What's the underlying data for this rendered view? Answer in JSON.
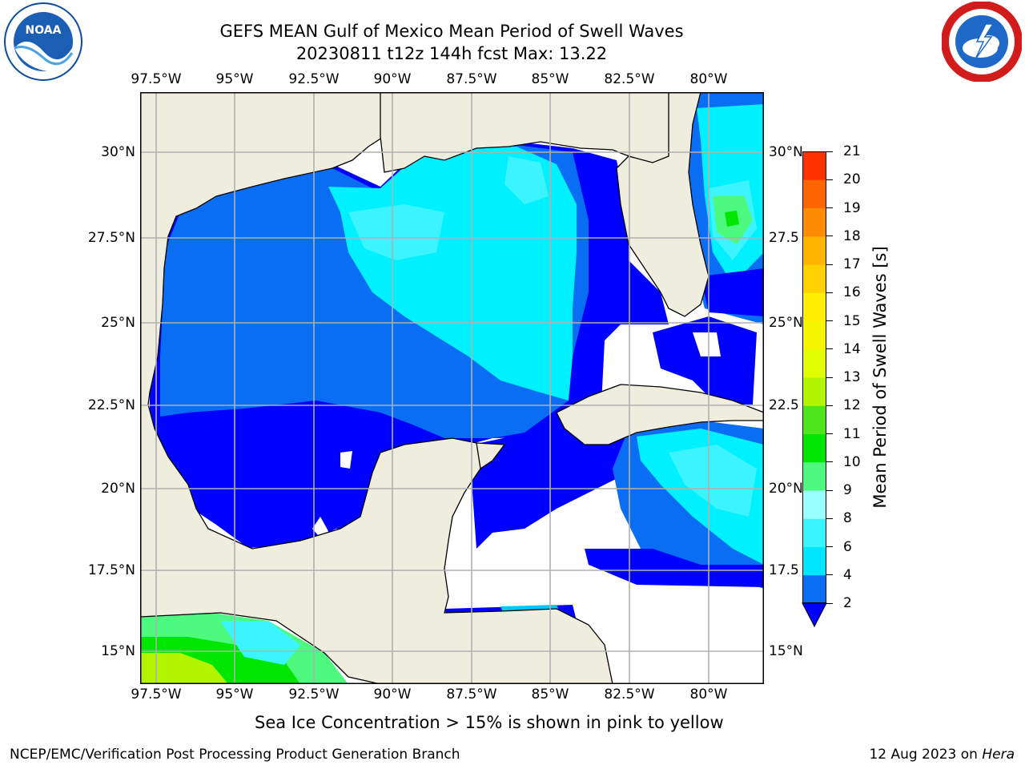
{
  "header": {
    "title_line1": "GEFS MEAN Gulf of Mexico Mean Period of Swell Waves",
    "title_line2": "20230811 t12z 144h fcst   Max: 13.22"
  },
  "logos": {
    "left_text": "NOAA",
    "left_ring_text": "NATIONAL OCEANIC AND ATMOSPHERIC ADMINISTRATION · U.S. DEPARTMENT OF COMMERCE",
    "right_ring_text": "NATIONAL WEATHER SERVICE"
  },
  "map": {
    "lon_labels": [
      "97.5°W",
      "95°W",
      "92.5°W",
      "90°W",
      "87.5°W",
      "85°W",
      "82.5°W",
      "80°W"
    ],
    "lat_labels_left": [
      "30°N",
      "27.5°N",
      "25°N",
      "22.5°N",
      "20°N",
      "17.5°N",
      "15°N"
    ],
    "lat_labels_right": [
      "30°N",
      "27.5",
      "25°N",
      "22.5",
      "20°N",
      "17.5",
      "15°N"
    ],
    "colors": {
      "land": "#efedde",
      "grid": "#b0b0b0",
      "coast": "#000000"
    }
  },
  "colorbar": {
    "title": "Mean Period of Swell Waves [s]",
    "ticks": [
      "2",
      "4",
      "6",
      "8",
      "9",
      "10",
      "11",
      "12",
      "13",
      "14",
      "15",
      "16",
      "17",
      "18",
      "19",
      "20",
      "21"
    ],
    "colors": [
      "#0a6ef5",
      "#00e6ff",
      "#39f5ff",
      "#99ffff",
      "#4dfa7f",
      "#00e600",
      "#4de61a",
      "#b3f500",
      "#e1ff00",
      "#f5f500",
      "#ffee00",
      "#ffd200",
      "#ffb400",
      "#ff8c00",
      "#ff6600",
      "#ff3300"
    ],
    "under_color": "#0000ff"
  },
  "footer": {
    "sea_ice_note": "Sea Ice Concentration > 15% is shown in pink to yellow",
    "credit": "NCEP/EMC/Verification Post Processing Product Generation Branch",
    "date": "12 Aug 2023 on",
    "host": "Hera"
  }
}
